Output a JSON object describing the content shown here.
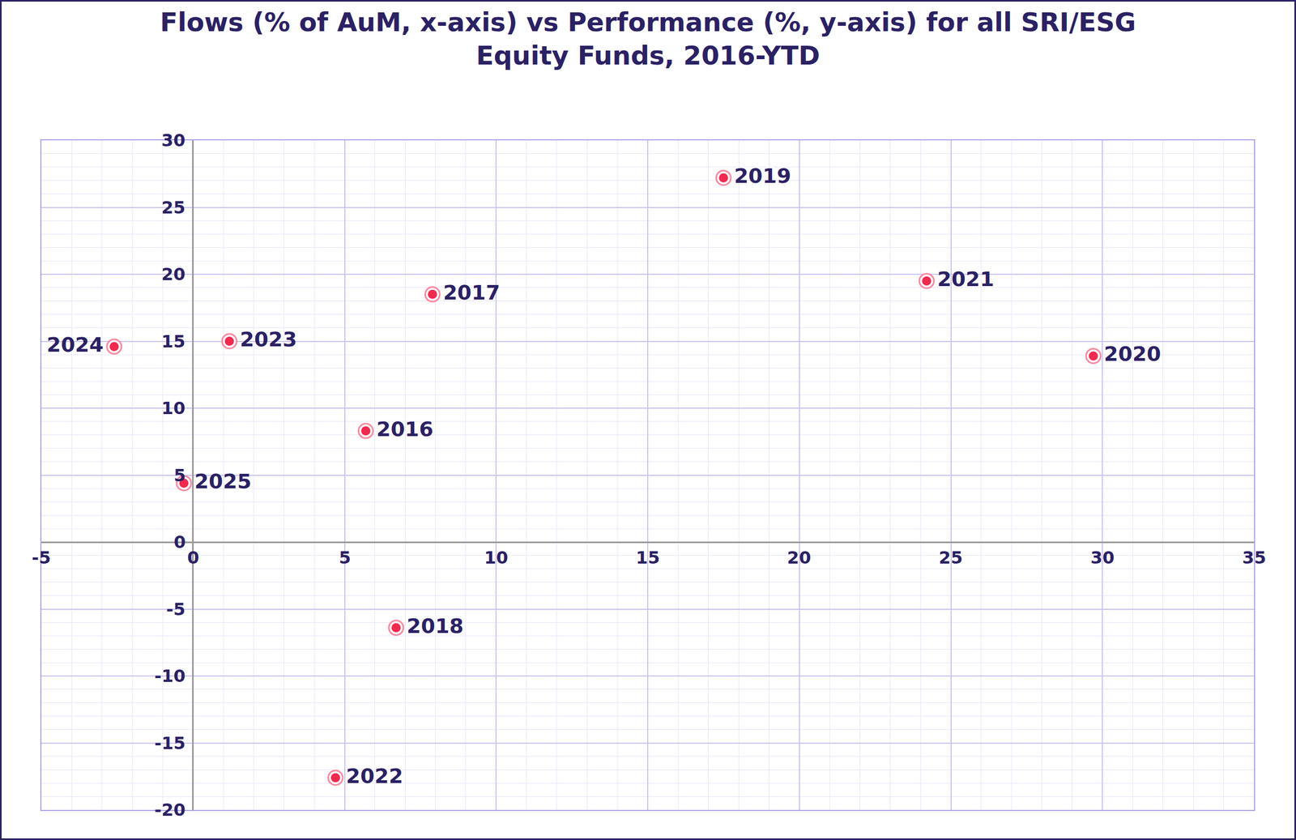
{
  "chart_data": {
    "type": "scatter",
    "title": "Flows (% of AuM, x-axis) vs Performance (%, y-axis) for all SRI/ESG\nEquity Funds, 2016-YTD",
    "labels": [
      "2016",
      "2017",
      "2018",
      "2019",
      "2020",
      "2021",
      "2022",
      "2023",
      "2024",
      "2025"
    ],
    "x": [
      5.7,
      7.9,
      6.7,
      17.5,
      29.7,
      24.2,
      4.7,
      1.2,
      -2.6,
      -0.3
    ],
    "values": [
      8.3,
      18.5,
      -6.4,
      27.2,
      13.9,
      19.5,
      -17.6,
      15.0,
      14.6,
      4.4
    ],
    "color": "#f0294f",
    "marker": "circle",
    "xlim": [
      -5,
      35
    ],
    "xticks": [
      -5,
      0,
      5,
      10,
      15,
      20,
      25,
      30,
      35
    ],
    "ylim": [
      -20,
      30
    ],
    "yticks": [
      -20,
      -15,
      -10,
      -5,
      0,
      5,
      10,
      15,
      20,
      25,
      30
    ],
    "grid": true
  }
}
